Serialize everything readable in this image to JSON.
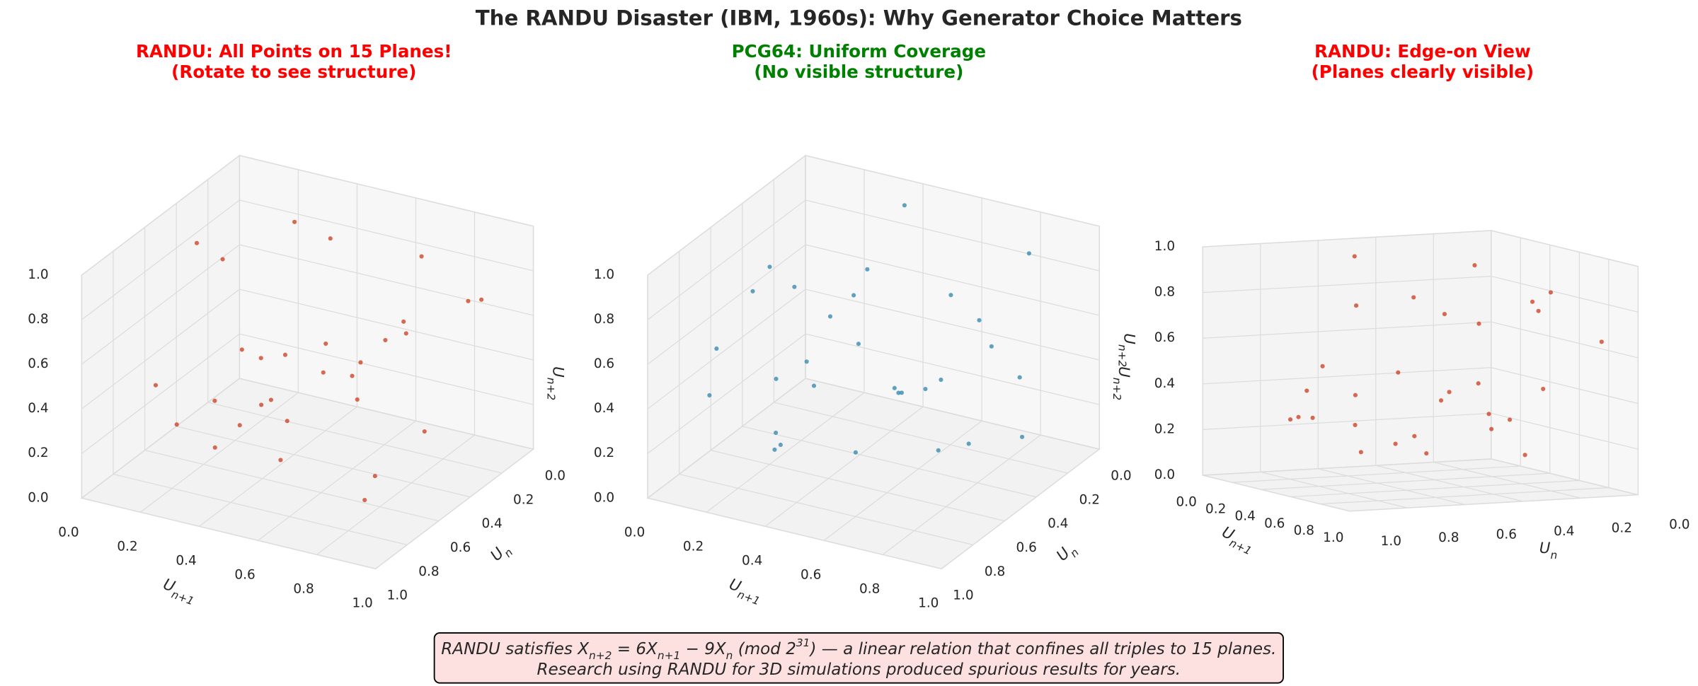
{
  "title": "The RANDU Disaster (IBM, 1960s): Why Generator Choice Matters",
  "annotation": [
    [
      {
        "t": "RANDU satisfies X"
      },
      {
        "sub": "n+2"
      },
      {
        "t": " = 6X"
      },
      {
        "sub": "n+1"
      },
      {
        "t": " − 9X"
      },
      {
        "sub": "n"
      },
      {
        "t": " (mod 2"
      },
      {
        "sup": "31"
      },
      {
        "t": ") — a linear relation that confines all triples to 15 planes."
      }
    ],
    [
      {
        "t": "Research using RANDU for 3D simulations produced spurious results for years."
      }
    ]
  ],
  "chart_data": [
    {
      "type": "scatter3d",
      "title": [
        "RANDU: All Points on 15 Planes!",
        "(Rotate to see structure)"
      ],
      "title_color": "#ff0000",
      "xlabel": {
        "base": "U",
        "sub": "n+1"
      },
      "ylabel": {
        "base": "U",
        "sub": "n"
      },
      "zlabel": {
        "base": "U",
        "sub": "n+2"
      },
      "color": "#cc3a1c",
      "xlim": [
        0,
        1
      ],
      "ylim": [
        0,
        1
      ],
      "zlim": [
        0,
        1
      ],
      "xticks": [
        {
          "value": 0,
          "label": "0.0"
        },
        {
          "value": 0.2,
          "label": "0.2"
        },
        {
          "value": 0.4,
          "label": "0.4"
        },
        {
          "value": 0.6,
          "label": "0.6"
        },
        {
          "value": 0.8,
          "label": "0.8"
        },
        {
          "value": 1,
          "label": "1.0"
        }
      ],
      "yticks": [
        {
          "value": 0,
          "label": "0.0"
        },
        {
          "value": 0.2,
          "label": "0.2"
        },
        {
          "value": 0.4,
          "label": "0.4"
        },
        {
          "value": 0.6,
          "label": "0.6"
        },
        {
          "value": 0.8,
          "label": "0.8"
        },
        {
          "value": 1,
          "label": "1.0"
        }
      ],
      "zticks": [
        {
          "value": 0,
          "label": "0.0"
        },
        {
          "value": 0.2,
          "label": "0.2"
        },
        {
          "value": 0.4,
          "label": "0.4"
        },
        {
          "value": 0.6,
          "label": "0.6"
        },
        {
          "value": 0.8,
          "label": "0.8"
        },
        {
          "value": 1,
          "label": "1.0"
        }
      ],
      "x": [
        0.1,
        0.3,
        0.5,
        0.7,
        0.9,
        0.2,
        0.4,
        0.6,
        0.8,
        0.15,
        0.35,
        0.55,
        0.75,
        0.95,
        0.05,
        0.25,
        0.45,
        0.65,
        0.85,
        0.12,
        0.48,
        0.68,
        0.88,
        0.32,
        0.58,
        0.22,
        0.78,
        0.42,
        0.92,
        0.08
      ],
      "y": [
        0.05,
        0.21,
        0.4,
        0.15,
        0.62,
        0.77,
        0.9,
        0.35,
        0.45,
        0.55,
        0.65,
        0.1,
        0.85,
        0.32,
        0.25,
        0.45,
        0.7,
        0.95,
        0.05,
        0.33,
        0.18,
        0.52,
        0.78,
        0.02,
        0.88,
        0.12,
        0.28,
        0.48,
        0.92,
        0.68
      ],
      "z": [
        0.15,
        0.91,
        0.4,
        0.85,
        0.82,
        0.27,
        0.3,
        0.45,
        0.75,
        0.95,
        0.25,
        0.4,
        0.85,
        0.82,
        0.05,
        0.45,
        0.4,
        0.35,
        0.65,
        0.75,
        0.26,
        0.4,
        0.26,
        0.74,
        0.56,
        0.24,
        0.16,
        0.2,
        0.24,
        0.36
      ]
    },
    {
      "type": "scatter3d",
      "title": [
        "PCG64: Uniform Coverage",
        "(No visible structure)"
      ],
      "title_color": "#008000",
      "xlabel": {
        "base": "U",
        "sub": "n+1"
      },
      "ylabel": {
        "base": "U",
        "sub": "n"
      },
      "zlabel": {
        "base": "U",
        "sub": "n+2"
      },
      "color": "#2e86ab",
      "xlim": [
        0,
        1
      ],
      "ylim": [
        0,
        1
      ],
      "zlim": [
        0,
        1
      ],
      "xticks": [
        {
          "value": 0,
          "label": "0.0"
        },
        {
          "value": 0.2,
          "label": "0.2"
        },
        {
          "value": 0.4,
          "label": "0.4"
        },
        {
          "value": 0.6,
          "label": "0.6"
        },
        {
          "value": 0.8,
          "label": "0.8"
        },
        {
          "value": 1,
          "label": "1.0"
        }
      ],
      "yticks": [
        {
          "value": 0,
          "label": "0.0"
        },
        {
          "value": 0.2,
          "label": "0.2"
        },
        {
          "value": 0.4,
          "label": "0.4"
        },
        {
          "value": 0.6,
          "label": "0.6"
        },
        {
          "value": 0.8,
          "label": "0.8"
        },
        {
          "value": 1,
          "label": "1.0"
        }
      ],
      "zticks": [
        {
          "value": 0,
          "label": "0.0"
        },
        {
          "value": 0.2,
          "label": "0.2"
        },
        {
          "value": 0.4,
          "label": "0.4"
        },
        {
          "value": 0.6,
          "label": "0.6"
        },
        {
          "value": 0.8,
          "label": "0.8"
        },
        {
          "value": 1,
          "label": "1.0"
        }
      ],
      "x": [
        0.12,
        0.33,
        0.57,
        0.91,
        0.24,
        0.68,
        0.45,
        0.79,
        0.06,
        0.38,
        0.62,
        0.85,
        0.17,
        0.51,
        0.73,
        0.29,
        0.96,
        0.42,
        0.09,
        0.66,
        0.54,
        0.2,
        0.87,
        0.35,
        0.71,
        0.03,
        0.48,
        0.82,
        0.26,
        0.59
      ],
      "y": [
        0.45,
        0.81,
        0.14,
        0.66,
        0.29,
        0.93,
        0.52,
        0.37,
        0.72,
        0.08,
        0.59,
        0.21,
        0.88,
        0.34,
        0.77,
        0.61,
        0.43,
        0.97,
        0.16,
        0.05,
        0.7,
        0.53,
        0.86,
        0.26,
        0.48,
        0.39,
        0.84,
        0.11,
        0.67,
        0.24
      ],
      "z": [
        0.78,
        0.22,
        0.63,
        0.35,
        0.51,
        0.87,
        0.09,
        0.71,
        0.33,
        0.94,
        0.47,
        0.12,
        0.66,
        0.28,
        0.58,
        0.83,
        0.54,
        0.41,
        0.19,
        0.38,
        0.92,
        0.05,
        0.69,
        0.74,
        0.16,
        0.61,
        0.57,
        0.88,
        0.44,
        0.31
      ]
    },
    {
      "type": "scatter3d",
      "title": [
        "RANDU: Edge-on View",
        "(Planes clearly visible)"
      ],
      "title_color": "#ff0000",
      "xlabel": {
        "base": "U",
        "sub": "n+1"
      },
      "ylabel": {
        "base": "U",
        "sub": "n"
      },
      "zlabel": {
        "base": "U",
        "sub": "n+2"
      },
      "color": "#cc3a1c",
      "xlim": [
        0,
        1
      ],
      "ylim": [
        0,
        1
      ],
      "zlim": [
        0,
        1
      ],
      "xticks": [
        {
          "value": 0,
          "label": "0.0"
        },
        {
          "value": 0.2,
          "label": "0.2"
        },
        {
          "value": 0.4,
          "label": "0.4"
        },
        {
          "value": 0.6,
          "label": "0.6"
        },
        {
          "value": 0.8,
          "label": "0.8"
        },
        {
          "value": 1,
          "label": "1.0"
        }
      ],
      "yticks": [
        {
          "value": 0,
          "label": "0.0"
        },
        {
          "value": 0.2,
          "label": "0.2"
        },
        {
          "value": 0.4,
          "label": "0.4"
        },
        {
          "value": 0.6,
          "label": "0.6"
        },
        {
          "value": 0.8,
          "label": "0.8"
        },
        {
          "value": 1,
          "label": "1.0"
        }
      ],
      "zticks": [
        {
          "value": 0,
          "label": "0.0"
        },
        {
          "value": 0.2,
          "label": "0.2"
        },
        {
          "value": 0.4,
          "label": "0.4"
        },
        {
          "value": 0.6,
          "label": "0.6"
        },
        {
          "value": 0.8,
          "label": "0.8"
        },
        {
          "value": 1,
          "label": "1.0"
        }
      ],
      "x": [
        0.1,
        0.3,
        0.5,
        0.7,
        0.9,
        0.2,
        0.4,
        0.6,
        0.8,
        0.15,
        0.35,
        0.55,
        0.75,
        0.95,
        0.05,
        0.25,
        0.45,
        0.65,
        0.85,
        0.12,
        0.48,
        0.68,
        0.88,
        0.32,
        0.58,
        0.22,
        0.78,
        0.42,
        0.92,
        0.08
      ],
      "y": [
        0.05,
        0.21,
        0.4,
        0.15,
        0.62,
        0.77,
        0.9,
        0.35,
        0.45,
        0.55,
        0.65,
        0.1,
        0.85,
        0.32,
        0.25,
        0.45,
        0.7,
        0.95,
        0.05,
        0.33,
        0.18,
        0.52,
        0.78,
        0.02,
        0.88,
        0.12,
        0.28,
        0.48,
        0.92,
        0.68
      ],
      "z": [
        0.15,
        0.91,
        0.4,
        0.85,
        0.82,
        0.27,
        0.3,
        0.45,
        0.75,
        0.95,
        0.25,
        0.4,
        0.85,
        0.82,
        0.05,
        0.45,
        0.4,
        0.35,
        0.65,
        0.75,
        0.26,
        0.4,
        0.26,
        0.74,
        0.56,
        0.24,
        0.16,
        0.2,
        0.24,
        0.36
      ]
    }
  ]
}
